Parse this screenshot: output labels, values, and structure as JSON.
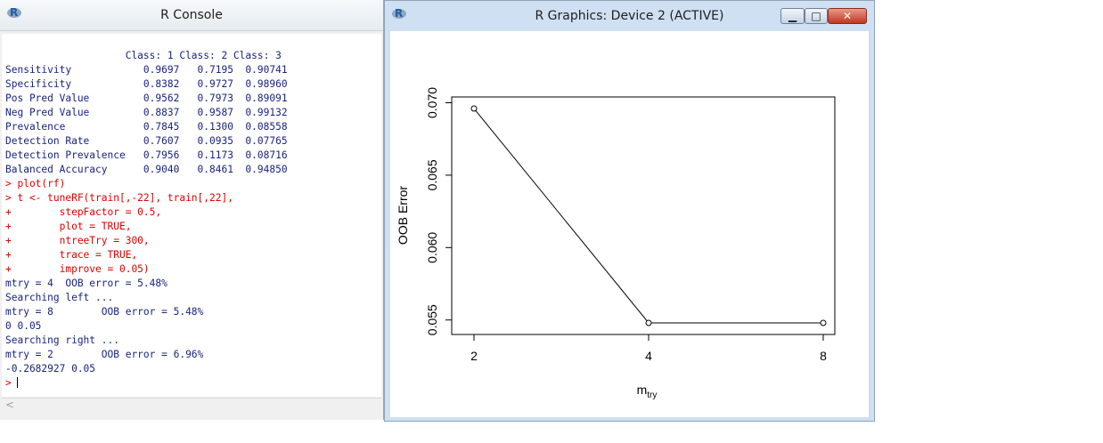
{
  "console": {
    "title": "R Console",
    "output_lines": [
      {
        "text": "                    Class: 1 Class: 2 Class: 3",
        "type": "out"
      },
      {
        "text": "Sensitivity            0.9697   0.7195  0.90741",
        "type": "out"
      },
      {
        "text": "Specificity            0.8382   0.9727  0.98960",
        "type": "out"
      },
      {
        "text": "Pos Pred Value         0.9562   0.7973  0.89091",
        "type": "out"
      },
      {
        "text": "Neg Pred Value         0.8837   0.9587  0.99132",
        "type": "out"
      },
      {
        "text": "Prevalence             0.7845   0.1300  0.08558",
        "type": "out"
      },
      {
        "text": "Detection Rate         0.7607   0.0935  0.07765",
        "type": "out"
      },
      {
        "text": "Detection Prevalence   0.7956   0.1173  0.08716",
        "type": "out"
      },
      {
        "text": "Balanced Accuracy      0.9040   0.8461  0.94850",
        "type": "out"
      },
      {
        "text": "> plot(rf)",
        "type": "cmd"
      },
      {
        "text": "> t <- tuneRF(train[,-22], train[,22],",
        "type": "cmd"
      },
      {
        "text": "+        stepFactor = 0.5,",
        "type": "cmd"
      },
      {
        "text": "+        plot = TRUE,",
        "type": "cmd"
      },
      {
        "text": "+        ntreeTry = 300,",
        "type": "cmd"
      },
      {
        "text": "+        trace = TRUE,",
        "type": "cmd"
      },
      {
        "text": "+        improve = 0.05)",
        "type": "cmd"
      },
      {
        "text": "mtry = 4  OOB error = 5.48%",
        "type": "out"
      },
      {
        "text": "Searching left ...",
        "type": "out"
      },
      {
        "text": "mtry = 8        OOB error = 5.48%",
        "type": "out"
      },
      {
        "text": "0 0.05",
        "type": "out"
      },
      {
        "text": "Searching right ...",
        "type": "out"
      },
      {
        "text": "mtry = 2        OOB error = 6.96%",
        "type": "out"
      },
      {
        "text": "-0.2682927 0.05",
        "type": "out"
      }
    ],
    "prompt": "> "
  },
  "graphics": {
    "title": "R Graphics: Device 2 (ACTIVE)",
    "buttons": {
      "minimize": "▁",
      "maximize": "□",
      "close": "✕"
    }
  },
  "colors": {
    "command_text": "#e00000",
    "output_text": "#1a237e"
  },
  "chart_data": {
    "type": "line",
    "x_categories": [
      "2",
      "4",
      "8"
    ],
    "values": [
      0.0696,
      0.0548,
      0.0548
    ],
    "title": "",
    "xlabel": "m",
    "xlabel_sub": "try",
    "ylabel": "OOB Error",
    "yticks": [
      "0.055",
      "0.060",
      "0.065",
      "0.070"
    ],
    "ytick_values": [
      0.055,
      0.06,
      0.065,
      0.07
    ],
    "ylim": [
      0.054,
      0.0704
    ],
    "grid": false,
    "marker": "open-circle"
  }
}
